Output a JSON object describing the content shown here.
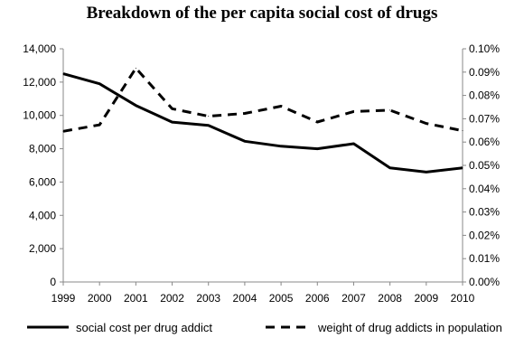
{
  "chart_data": {
    "type": "line",
    "title": "Breakdown of the per capita social cost of drugs",
    "x": [
      "1999",
      "2000",
      "2001",
      "2002",
      "2003",
      "2004",
      "2005",
      "2006",
      "2007",
      "2008",
      "2009",
      "2010"
    ],
    "series": [
      {
        "name": "social cost per drug addict",
        "axis": "left",
        "style": "solid",
        "color": "#000000",
        "values": [
          12500,
          11900,
          10600,
          9600,
          9400,
          8450,
          8150,
          8000,
          8300,
          6850,
          6600,
          6850
        ]
      },
      {
        "name": "weight of drug addicts in population",
        "axis": "right",
        "style": "dashed",
        "color": "#000000",
        "values": [
          0.0646,
          0.0674,
          0.0917,
          0.0743,
          0.0711,
          0.0723,
          0.0754,
          0.0686,
          0.0731,
          0.0737,
          0.068,
          0.0649
        ]
      }
    ],
    "y_left": {
      "ylim": [
        0,
        14000
      ],
      "ticks": [
        "0",
        "2,000",
        "4,000",
        "6,000",
        "8,000",
        "10,000",
        "12,000",
        "14,000"
      ]
    },
    "y_right": {
      "ylim": [
        0,
        0.1
      ],
      "unit": "%",
      "ticks": [
        "0.00%",
        "0.01%",
        "0.02%",
        "0.03%",
        "0.04%",
        "0.05%",
        "0.06%",
        "0.07%",
        "0.08%",
        "0.09%",
        "0.10%"
      ]
    },
    "grid": false,
    "legend": "bottom"
  }
}
